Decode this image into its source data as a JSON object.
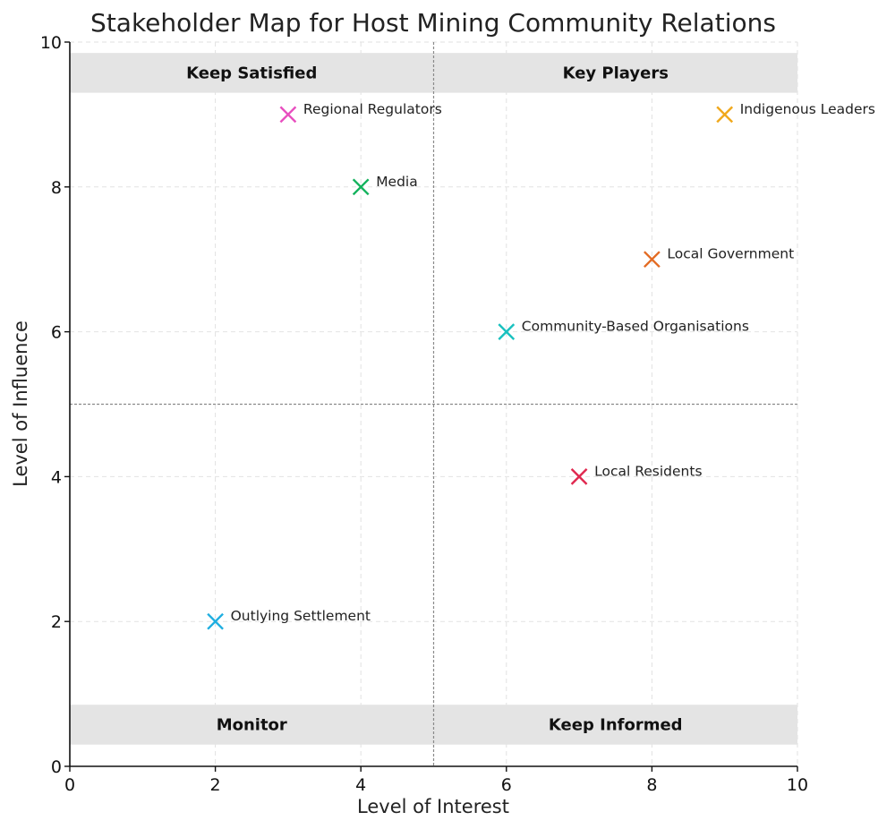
{
  "chart_data": {
    "type": "scatter",
    "title": "Stakeholder Map for Host Mining Community Relations",
    "xlabel": "Level of Interest",
    "ylabel": "Level of Influence",
    "xlim": [
      0,
      10
    ],
    "ylim": [
      0,
      10
    ],
    "x_ticks": [
      0,
      2,
      4,
      6,
      8,
      10
    ],
    "y_ticks": [
      0,
      2,
      4,
      6,
      8,
      10
    ],
    "grid": true,
    "marker": "x",
    "divider_x": 5,
    "divider_y": 5,
    "quadrants": [
      {
        "label": "Keep Satisfied",
        "x_range": [
          0,
          5
        ],
        "y_range": [
          9.3,
          9.85
        ]
      },
      {
        "label": "Key Players",
        "x_range": [
          5,
          10
        ],
        "y_range": [
          9.3,
          9.85
        ]
      },
      {
        "label": "Monitor",
        "x_range": [
          0,
          5
        ],
        "y_range": [
          0.3,
          0.85
        ]
      },
      {
        "label": "Keep Informed",
        "x_range": [
          5,
          10
        ],
        "y_range": [
          0.3,
          0.85
        ]
      }
    ],
    "points": [
      {
        "name": "Regional Regulators",
        "x": 3,
        "y": 9,
        "color": "#e84fbf"
      },
      {
        "name": "Indigenous Leaders",
        "x": 9,
        "y": 9,
        "color": "#f0a81b"
      },
      {
        "name": "Media",
        "x": 4,
        "y": 8,
        "color": "#12b25c"
      },
      {
        "name": "Local Government",
        "x": 8,
        "y": 7,
        "color": "#e36b23"
      },
      {
        "name": "Community-Based Organisations",
        "x": 6,
        "y": 6,
        "color": "#19c1bf"
      },
      {
        "name": "Local Residents",
        "x": 7,
        "y": 4,
        "color": "#e0284f"
      },
      {
        "name": "Outlying Settlement",
        "x": 2,
        "y": 2,
        "color": "#1eaee0"
      }
    ]
  }
}
